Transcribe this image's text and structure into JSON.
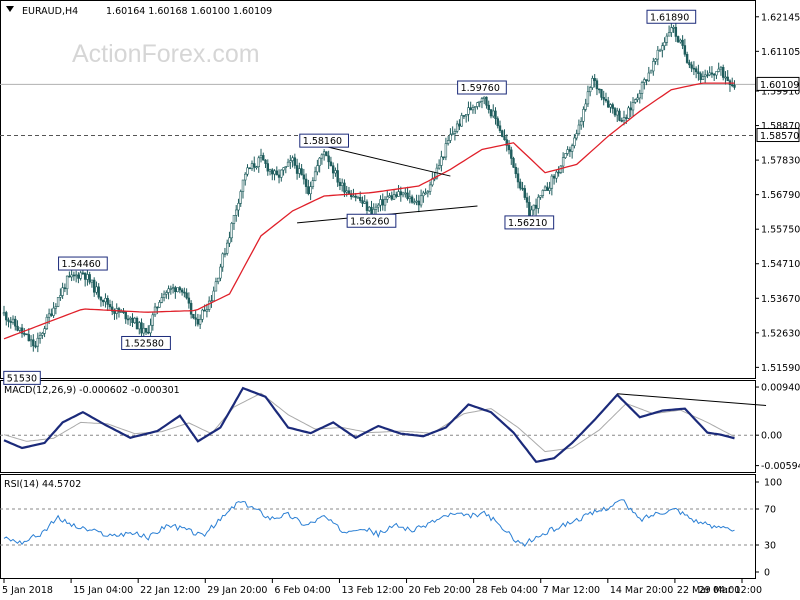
{
  "chart_data": [
    {
      "type": "candlestick",
      "panel": "price",
      "watermark": "ActionForex.com",
      "title": "EURAUD,H4",
      "ohlc_header": "1.60164 1.60168 1.60100 1.60109",
      "y_ticks": [
        "1.62145",
        "1.61105",
        "1.59910",
        "1.58870",
        "1.57830",
        "1.56790",
        "1.55750",
        "1.54710",
        "1.53670",
        "1.52630",
        "1.51590"
      ],
      "ylim": [
        1.5133,
        1.6253
      ],
      "grid": false,
      "colors": {
        "candle": "#1e5c5c",
        "ma": "#e0202a",
        "trendline": "#000000",
        "level_line": "#555555"
      },
      "current_price": {
        "value": 1.60109,
        "label": "1.60109"
      },
      "level_line": {
        "value": 1.5857,
        "label": "1.58570"
      },
      "price_series_approx": [
        {
          "x": 0,
          "close": 1.532
        },
        {
          "x": 7,
          "close": 1.527
        },
        {
          "x": 14,
          "close": 1.522
        },
        {
          "x": 20,
          "close": 1.5315
        },
        {
          "x": 28,
          "close": 1.542
        },
        {
          "x": 35,
          "close": 1.5446
        },
        {
          "x": 42,
          "close": 1.538
        },
        {
          "x": 49,
          "close": 1.533
        },
        {
          "x": 56,
          "close": 1.531
        },
        {
          "x": 63,
          "close": 1.5258
        },
        {
          "x": 70,
          "close": 1.538
        },
        {
          "x": 78,
          "close": 1.5405
        },
        {
          "x": 85,
          "close": 1.529
        },
        {
          "x": 92,
          "close": 1.537
        },
        {
          "x": 100,
          "close": 1.556
        },
        {
          "x": 107,
          "close": 1.5745
        },
        {
          "x": 114,
          "close": 1.5785
        },
        {
          "x": 121,
          "close": 1.573
        },
        {
          "x": 128,
          "close": 1.578
        },
        {
          "x": 135,
          "close": 1.5695
        },
        {
          "x": 142,
          "close": 1.5816
        },
        {
          "x": 149,
          "close": 1.571
        },
        {
          "x": 156,
          "close": 1.5675
        },
        {
          "x": 163,
          "close": 1.5626
        },
        {
          "x": 170,
          "close": 1.567
        },
        {
          "x": 177,
          "close": 1.568
        },
        {
          "x": 184,
          "close": 1.5655
        },
        {
          "x": 191,
          "close": 1.5735
        },
        {
          "x": 198,
          "close": 1.5855
        },
        {
          "x": 205,
          "close": 1.5925
        },
        {
          "x": 212,
          "close": 1.5976
        },
        {
          "x": 219,
          "close": 1.5895
        },
        {
          "x": 226,
          "close": 1.577
        },
        {
          "x": 233,
          "close": 1.5621
        },
        {
          "x": 240,
          "close": 1.569
        },
        {
          "x": 247,
          "close": 1.5765
        },
        {
          "x": 254,
          "close": 1.5855
        },
        {
          "x": 261,
          "close": 1.6025
        },
        {
          "x": 268,
          "close": 1.5955
        },
        {
          "x": 275,
          "close": 1.59
        },
        {
          "x": 282,
          "close": 1.5995
        },
        {
          "x": 289,
          "close": 1.6085
        },
        {
          "x": 296,
          "close": 1.6189
        },
        {
          "x": 303,
          "close": 1.609
        },
        {
          "x": 310,
          "close": 1.6025
        },
        {
          "x": 317,
          "close": 1.6055
        },
        {
          "x": 324,
          "close": 1.60109
        }
      ],
      "ma_series_approx": [
        {
          "x": 0,
          "y": 1.5245
        },
        {
          "x": 35,
          "y": 1.5335
        },
        {
          "x": 63,
          "y": 1.5325
        },
        {
          "x": 85,
          "y": 1.533
        },
        {
          "x": 100,
          "y": 1.538
        },
        {
          "x": 114,
          "y": 1.5555
        },
        {
          "x": 128,
          "y": 1.563
        },
        {
          "x": 142,
          "y": 1.5675
        },
        {
          "x": 163,
          "y": 1.5685
        },
        {
          "x": 184,
          "y": 1.5705
        },
        {
          "x": 198,
          "y": 1.5755
        },
        {
          "x": 212,
          "y": 1.5815
        },
        {
          "x": 226,
          "y": 1.5835
        },
        {
          "x": 240,
          "y": 1.5745
        },
        {
          "x": 254,
          "y": 1.577
        },
        {
          "x": 268,
          "y": 1.5855
        },
        {
          "x": 282,
          "y": 1.593
        },
        {
          "x": 296,
          "y": 1.5995
        },
        {
          "x": 310,
          "y": 1.6015
        },
        {
          "x": 324,
          "y": 1.6015
        }
      ],
      "annotations": [
        {
          "label": "1.54460",
          "x": 35,
          "y": 1.5446,
          "side": "above"
        },
        {
          "label": "1.52580",
          "x": 63,
          "y": 1.5258,
          "side": "below"
        },
        {
          "label": "51530",
          "x": 8,
          "y": 1.5153,
          "side": "below"
        },
        {
          "label": "1.58160",
          "x": 142,
          "y": 1.5816,
          "side": "above"
        },
        {
          "label": "1.56260",
          "x": 163,
          "y": 1.5626,
          "side": "below"
        },
        {
          "label": "1.59760",
          "x": 212,
          "y": 1.5976,
          "side": "above"
        },
        {
          "label": "1.56210",
          "x": 233,
          "y": 1.5621,
          "side": "below"
        },
        {
          "label": "1.61890",
          "x": 296,
          "y": 1.6189,
          "side": "above"
        }
      ],
      "trendlines": [
        {
          "x1": 142,
          "y1": 1.5825,
          "x2": 198,
          "y2": 1.5735
        },
        {
          "x1": 130,
          "y1": 1.5594,
          "x2": 210,
          "y2": 1.5645
        }
      ]
    },
    {
      "type": "line",
      "panel": "macd",
      "title": "MACD(12,26,9) -0.000602 -0.000301",
      "y_ticks": [
        "0.009407",
        "0.00",
        "-0.00594"
      ],
      "ylim": [
        -0.0068,
        0.01
      ],
      "colors": {
        "macd": "#1b2a7a",
        "signal": "#aaaaaa",
        "trendline": "#000000"
      },
      "macd_series_approx": [
        {
          "x": 0,
          "y": -0.001
        },
        {
          "x": 8,
          "y": -0.0025
        },
        {
          "x": 18,
          "y": -0.0015
        },
        {
          "x": 26,
          "y": 0.0025
        },
        {
          "x": 35,
          "y": 0.0045
        },
        {
          "x": 45,
          "y": 0.002
        },
        {
          "x": 56,
          "y": -0.0005
        },
        {
          "x": 68,
          "y": 0.0008
        },
        {
          "x": 78,
          "y": 0.0038
        },
        {
          "x": 86,
          "y": -0.0012
        },
        {
          "x": 96,
          "y": 0.0015
        },
        {
          "x": 106,
          "y": 0.0092
        },
        {
          "x": 116,
          "y": 0.0075
        },
        {
          "x": 126,
          "y": 0.0015
        },
        {
          "x": 136,
          "y": 0.0004
        },
        {
          "x": 146,
          "y": 0.0025
        },
        {
          "x": 156,
          "y": -0.0005
        },
        {
          "x": 166,
          "y": 0.0018
        },
        {
          "x": 176,
          "y": 0.0003
        },
        {
          "x": 186,
          "y": -0.0002
        },
        {
          "x": 196,
          "y": 0.0015
        },
        {
          "x": 206,
          "y": 0.006
        },
        {
          "x": 216,
          "y": 0.0045
        },
        {
          "x": 226,
          "y": 0.0005
        },
        {
          "x": 236,
          "y": -0.0052
        },
        {
          "x": 244,
          "y": -0.0045
        },
        {
          "x": 252,
          "y": -0.0015
        },
        {
          "x": 262,
          "y": 0.003
        },
        {
          "x": 272,
          "y": 0.0079
        },
        {
          "x": 282,
          "y": 0.0035
        },
        {
          "x": 292,
          "y": 0.0048
        },
        {
          "x": 302,
          "y": 0.0052
        },
        {
          "x": 312,
          "y": 0.0005
        },
        {
          "x": 318,
          "y": 0.0001
        },
        {
          "x": 324,
          "y": -0.0006
        }
      ],
      "signal_series_approx": [
        {
          "x": 0,
          "y": 0.0001
        },
        {
          "x": 10,
          "y": -0.0012
        },
        {
          "x": 22,
          "y": -0.0006
        },
        {
          "x": 34,
          "y": 0.0025
        },
        {
          "x": 46,
          "y": 0.0022
        },
        {
          "x": 58,
          "y": 0.0003
        },
        {
          "x": 70,
          "y": 0.0007
        },
        {
          "x": 82,
          "y": 0.0024
        },
        {
          "x": 92,
          "y": 0.0003
        },
        {
          "x": 102,
          "y": 0.0055
        },
        {
          "x": 114,
          "y": 0.0082
        },
        {
          "x": 126,
          "y": 0.004
        },
        {
          "x": 138,
          "y": 0.0012
        },
        {
          "x": 150,
          "y": 0.0015
        },
        {
          "x": 162,
          "y": 0.0005
        },
        {
          "x": 176,
          "y": 0.0008
        },
        {
          "x": 190,
          "y": 0.0004
        },
        {
          "x": 204,
          "y": 0.0042
        },
        {
          "x": 216,
          "y": 0.0052
        },
        {
          "x": 228,
          "y": 0.0015
        },
        {
          "x": 240,
          "y": -0.0032
        },
        {
          "x": 252,
          "y": -0.0025
        },
        {
          "x": 264,
          "y": 0.001
        },
        {
          "x": 276,
          "y": 0.0062
        },
        {
          "x": 288,
          "y": 0.0042
        },
        {
          "x": 300,
          "y": 0.0049
        },
        {
          "x": 312,
          "y": 0.0025
        },
        {
          "x": 324,
          "y": -0.0003
        }
      ],
      "trendline": {
        "x1": 272,
        "y1": 0.0081,
        "x2": 338,
        "y2": 0.0058
      }
    },
    {
      "type": "line",
      "panel": "rsi",
      "title": "RSI(14) 44.5702",
      "y_ticks": [
        "100",
        "70",
        "30",
        "0"
      ],
      "ylim": [
        0,
        100
      ],
      "levels": [
        70,
        30
      ],
      "colors": {
        "rsi": "#2a7fd4",
        "level": "#888888"
      },
      "rsi_series_approx": [
        {
          "x": 0,
          "y": 38
        },
        {
          "x": 8,
          "y": 33
        },
        {
          "x": 16,
          "y": 42
        },
        {
          "x": 24,
          "y": 60
        },
        {
          "x": 32,
          "y": 50
        },
        {
          "x": 40,
          "y": 45
        },
        {
          "x": 48,
          "y": 40
        },
        {
          "x": 56,
          "y": 44
        },
        {
          "x": 64,
          "y": 38
        },
        {
          "x": 72,
          "y": 52
        },
        {
          "x": 80,
          "y": 48
        },
        {
          "x": 88,
          "y": 40
        },
        {
          "x": 96,
          "y": 58
        },
        {
          "x": 104,
          "y": 78
        },
        {
          "x": 110,
          "y": 72
        },
        {
          "x": 118,
          "y": 60
        },
        {
          "x": 126,
          "y": 64
        },
        {
          "x": 134,
          "y": 52
        },
        {
          "x": 142,
          "y": 62
        },
        {
          "x": 150,
          "y": 45
        },
        {
          "x": 158,
          "y": 50
        },
        {
          "x": 166,
          "y": 42
        },
        {
          "x": 174,
          "y": 52
        },
        {
          "x": 182,
          "y": 46
        },
        {
          "x": 190,
          "y": 56
        },
        {
          "x": 198,
          "y": 64
        },
        {
          "x": 206,
          "y": 62
        },
        {
          "x": 214,
          "y": 65
        },
        {
          "x": 222,
          "y": 46
        },
        {
          "x": 230,
          "y": 30
        },
        {
          "x": 236,
          "y": 38
        },
        {
          "x": 244,
          "y": 48
        },
        {
          "x": 252,
          "y": 56
        },
        {
          "x": 260,
          "y": 64
        },
        {
          "x": 268,
          "y": 72
        },
        {
          "x": 274,
          "y": 80
        },
        {
          "x": 282,
          "y": 58
        },
        {
          "x": 290,
          "y": 66
        },
        {
          "x": 298,
          "y": 70
        },
        {
          "x": 306,
          "y": 58
        },
        {
          "x": 314,
          "y": 50
        },
        {
          "x": 320,
          "y": 52
        },
        {
          "x": 324,
          "y": 44.57
        }
      ]
    }
  ],
  "x_axis_labels": [
    "5 Jan 2018",
    "15 Jan 04:00",
    "22 Jan 12:00",
    "29 Jan 20:00",
    "6 Feb 04:00",
    "13 Feb 12:00",
    "20 Feb 20:00",
    "28 Feb 04:00",
    "7 Mar 12:00",
    "14 Mar 20:00",
    "22 Mar 04:00",
    "29 Mar 12:00"
  ]
}
